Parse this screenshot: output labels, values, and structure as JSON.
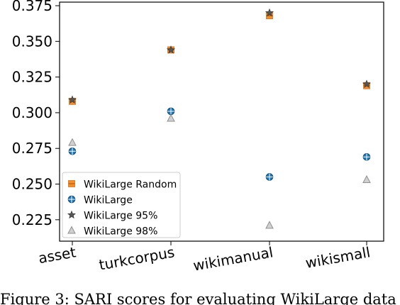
{
  "chart_data": {
    "type": "scatter",
    "categories": [
      "asset",
      "turkcorpus",
      "wikimanual",
      "wikismall"
    ],
    "ylim": [
      0.21,
      0.3775
    ],
    "yticks": [
      0.225,
      0.25,
      0.275,
      0.3,
      0.325,
      0.35,
      0.375
    ],
    "ytick_labels": [
      "0.225",
      "0.250",
      "0.275",
      "0.300",
      "0.325",
      "0.350",
      "0.375"
    ],
    "grid": false,
    "legend_position": "lower-left",
    "series": [
      {
        "name": "WikiLarge Random",
        "marker": "square",
        "color": "#f28e2b",
        "values": [
          0.308,
          0.344,
          0.368,
          0.319
        ]
      },
      {
        "name": "WikiLarge",
        "marker": "circle-plus",
        "color": "#1f77b4",
        "values": [
          0.273,
          0.301,
          0.255,
          0.269
        ]
      },
      {
        "name": "WikiLarge 95%",
        "marker": "star",
        "color": "#555555",
        "values": [
          0.309,
          0.344,
          0.37,
          0.32
        ]
      },
      {
        "name": "WikiLarge 98%",
        "marker": "triangle",
        "color": "#a0a0a0",
        "values": [
          0.279,
          0.296,
          0.221,
          0.253
        ]
      }
    ]
  },
  "caption": "Figure 3: SARI scores for evaluating WikiLarge data"
}
